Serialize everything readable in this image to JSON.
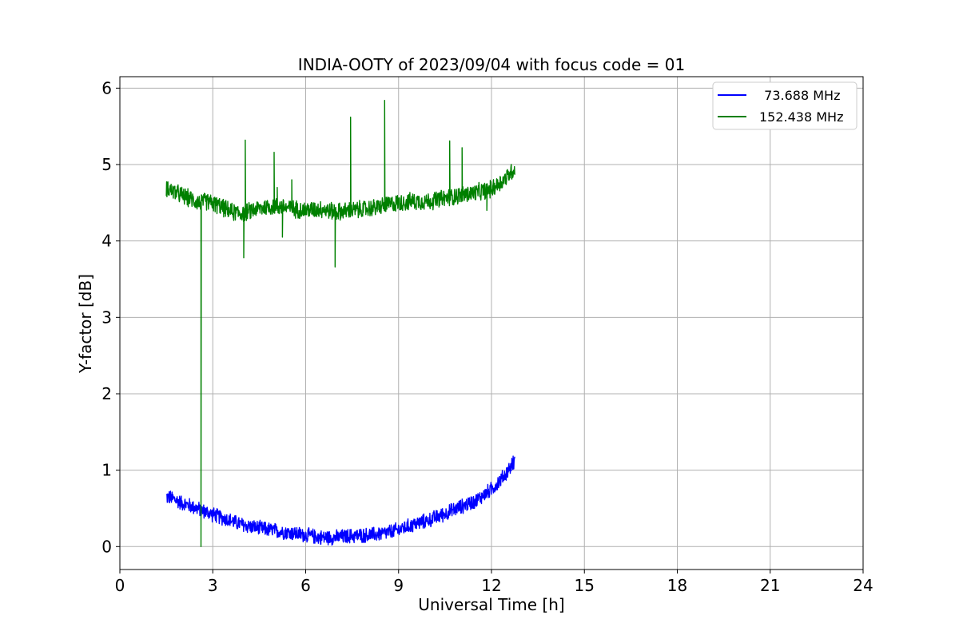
{
  "chart_data": {
    "type": "line",
    "title": "INDIA-OOTY of 2023/09/04 with focus code = 01",
    "xlabel": "Universal Time [h]",
    "ylabel": "Y-factor [dB]",
    "xlim": [
      0,
      24
    ],
    "ylim": [
      -0.3,
      6.15
    ],
    "xticks": [
      0,
      3,
      6,
      9,
      12,
      15,
      18,
      21,
      24
    ],
    "yticks": [
      0,
      1,
      2,
      3,
      4,
      5,
      6
    ],
    "grid": true,
    "legend_position": "top-right",
    "series": [
      {
        "name": "  73.688 MHz",
        "color": "#0000ff",
        "x": [
          1.5,
          1.7,
          2.0,
          2.3,
          2.6,
          3.0,
          3.5,
          4.0,
          4.5,
          5.0,
          5.5,
          6.0,
          6.5,
          7.0,
          7.5,
          8.0,
          8.5,
          9.0,
          9.5,
          10.0,
          10.5,
          11.0,
          11.5,
          12.0,
          12.4,
          12.75
        ],
        "y": [
          0.65,
          0.63,
          0.57,
          0.53,
          0.48,
          0.42,
          0.35,
          0.28,
          0.24,
          0.21,
          0.18,
          0.15,
          0.12,
          0.12,
          0.14,
          0.15,
          0.17,
          0.22,
          0.29,
          0.35,
          0.43,
          0.52,
          0.6,
          0.75,
          0.92,
          1.12
        ]
      },
      {
        "name": "152.438 MHz",
        "color": "#008000",
        "x": [
          1.5,
          1.8,
          2.1,
          2.4,
          2.6,
          2.8,
          3.2,
          3.6,
          4.0,
          4.4,
          4.8,
          5.2,
          5.6,
          6.0,
          6.5,
          7.0,
          7.5,
          8.0,
          8.5,
          9.0,
          9.5,
          10.0,
          10.5,
          11.0,
          11.5,
          12.0,
          12.4,
          12.75
        ],
        "y": [
          4.7,
          4.63,
          4.58,
          4.53,
          4.5,
          4.52,
          4.46,
          4.38,
          4.36,
          4.42,
          4.45,
          4.45,
          4.42,
          4.4,
          4.42,
          4.38,
          4.4,
          4.42,
          4.46,
          4.5,
          4.52,
          4.52,
          4.56,
          4.6,
          4.63,
          4.68,
          4.8,
          4.95
        ]
      }
    ],
    "spikes": [
      {
        "series": 1,
        "x": 2.62,
        "y": 0.0
      },
      {
        "series": 1,
        "x": 4.05,
        "y": 5.32
      },
      {
        "series": 1,
        "x": 4.0,
        "y": 3.78
      },
      {
        "series": 1,
        "x": 4.98,
        "y": 5.16
      },
      {
        "series": 1,
        "x": 5.08,
        "y": 4.7
      },
      {
        "series": 1,
        "x": 5.25,
        "y": 4.05
      },
      {
        "series": 1,
        "x": 5.55,
        "y": 4.8
      },
      {
        "series": 1,
        "x": 6.95,
        "y": 3.66
      },
      {
        "series": 1,
        "x": 7.45,
        "y": 5.62
      },
      {
        "series": 1,
        "x": 8.55,
        "y": 5.84
      },
      {
        "series": 1,
        "x": 10.65,
        "y": 5.31
      },
      {
        "series": 1,
        "x": 11.05,
        "y": 5.22
      },
      {
        "series": 1,
        "x": 11.85,
        "y": 4.4
      }
    ]
  }
}
